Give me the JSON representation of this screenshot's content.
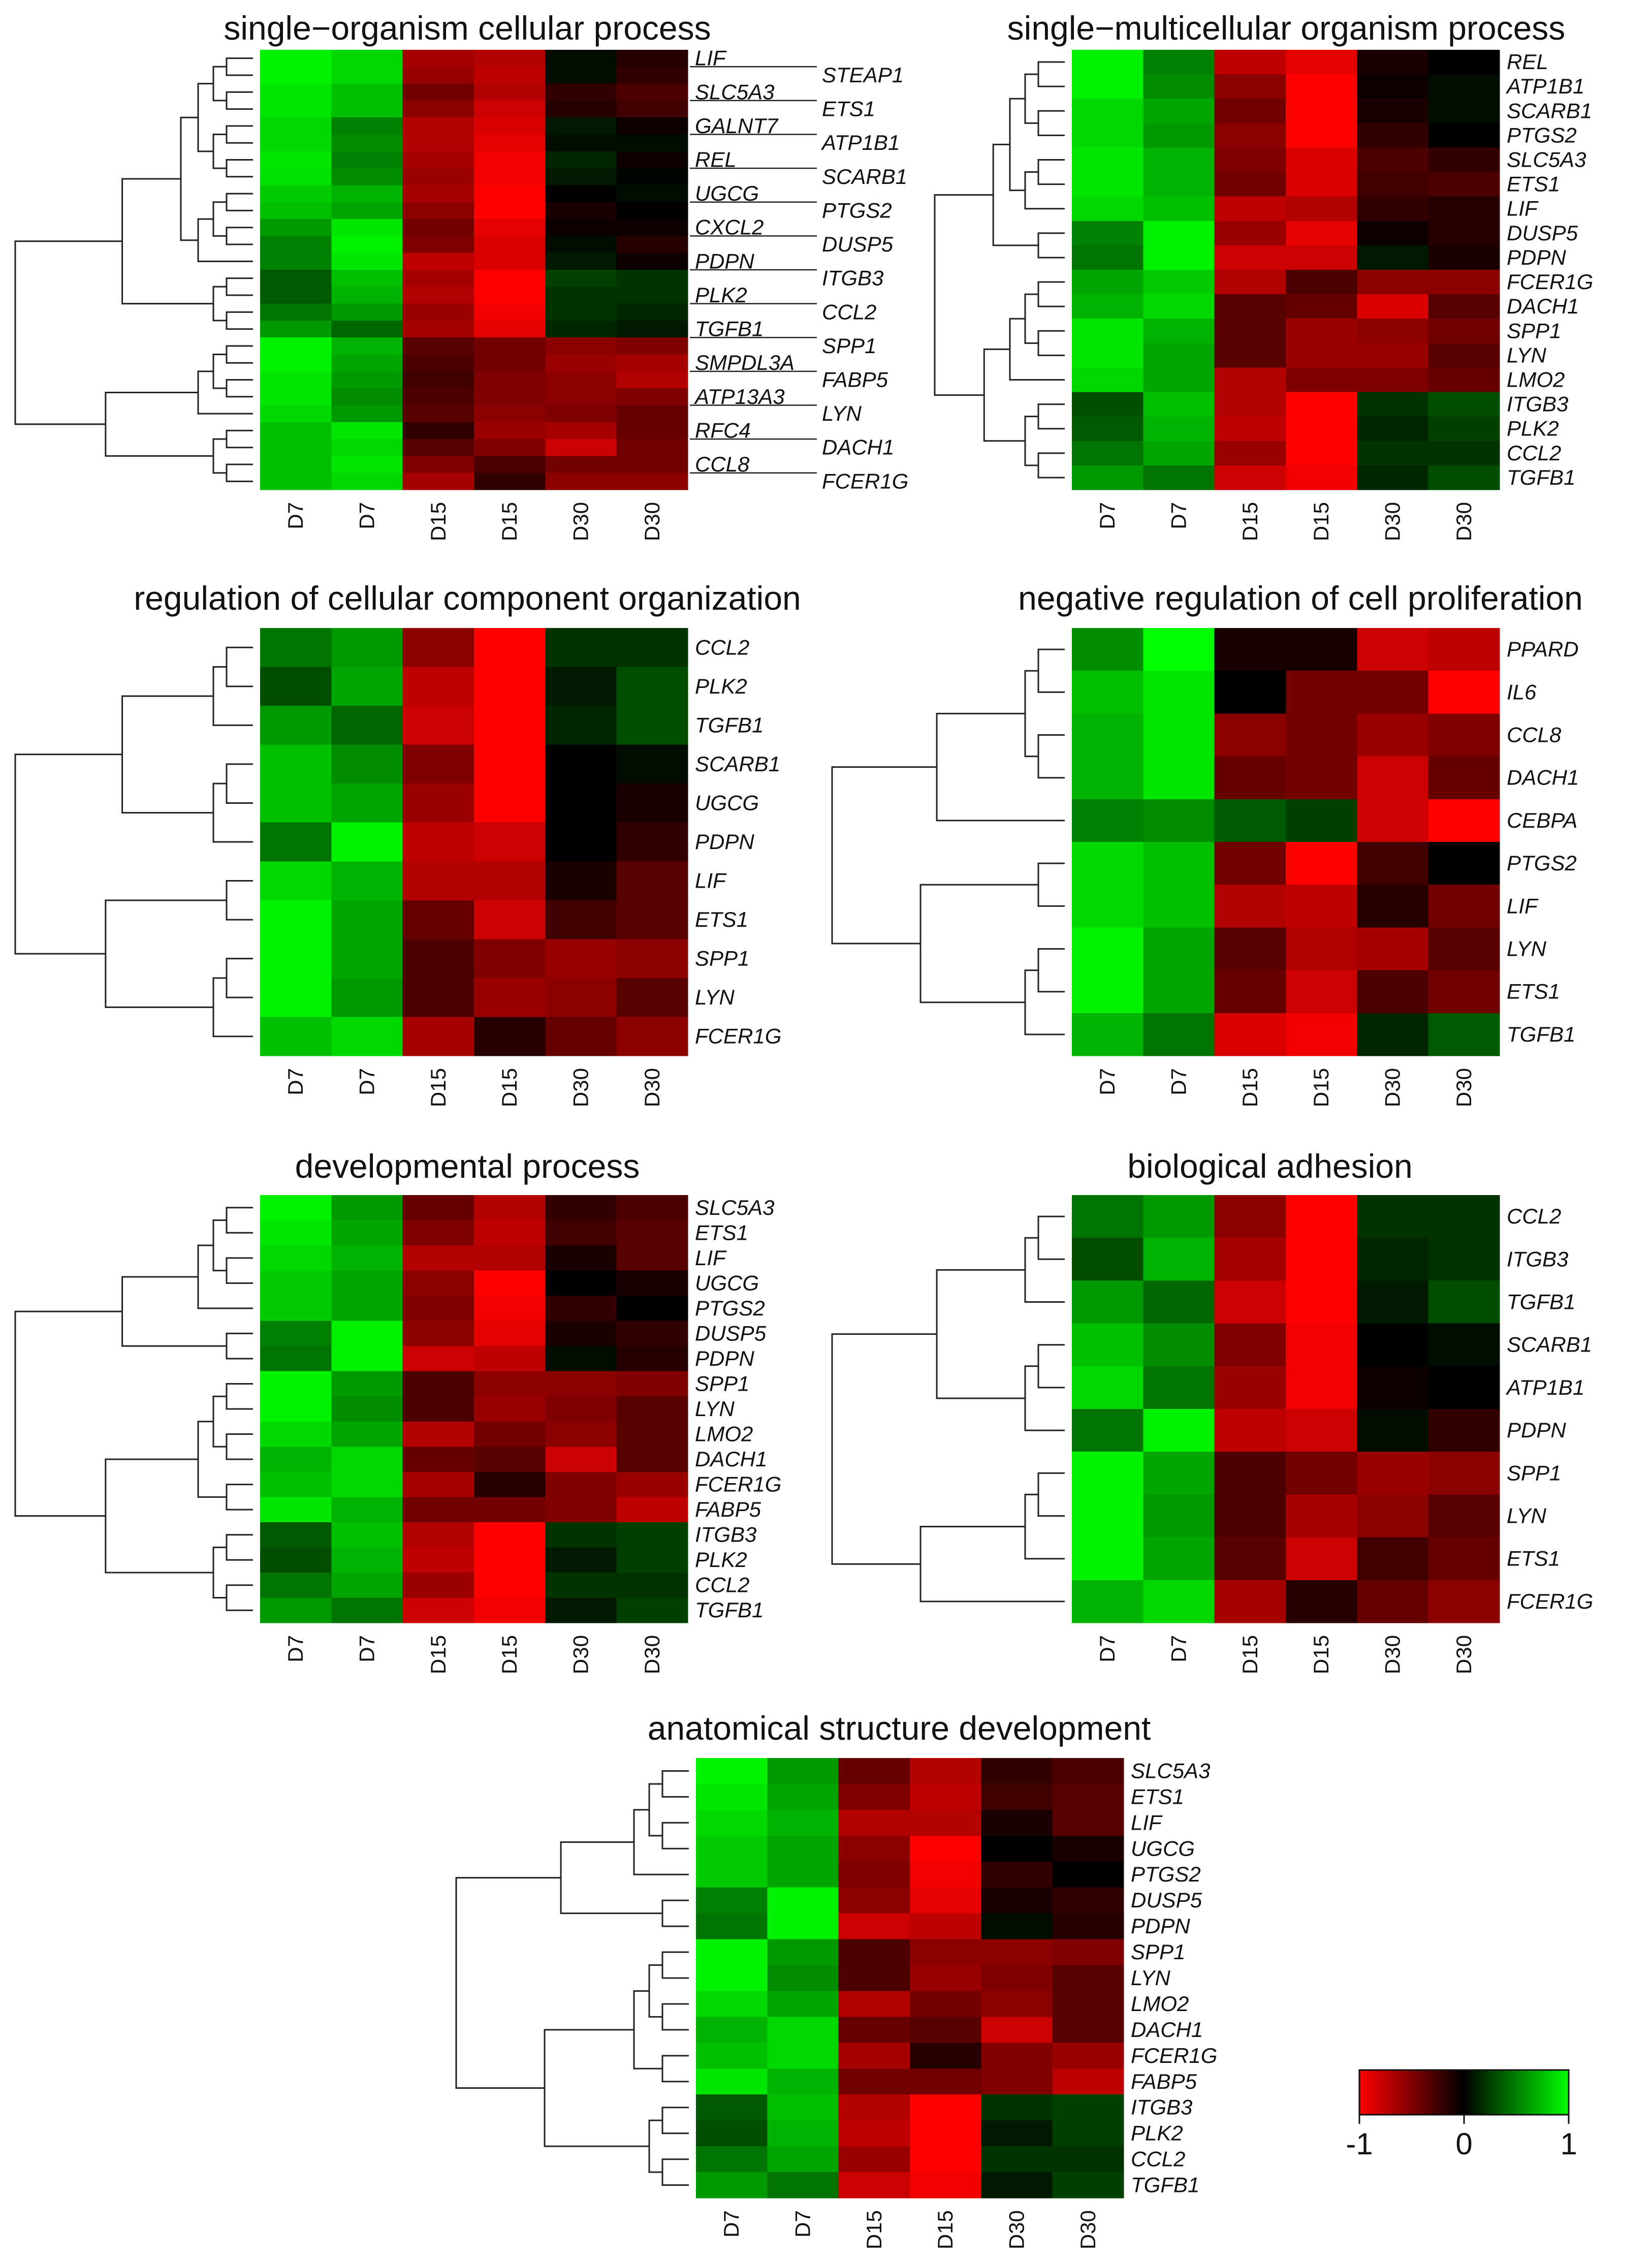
{
  "chart_data": [
    {
      "type": "heatmap",
      "title": "single−organism cellular process",
      "columns": [
        "D7",
        "D7",
        "D15",
        "D15",
        "D30",
        "D30"
      ],
      "rows": [
        "LIF",
        "STEAP1",
        "SLC5A3",
        "ETS1",
        "GALNT7",
        "ATP1B1",
        "REL",
        "SCARB1",
        "UGCG",
        "PTGS2",
        "CXCL2",
        "DUSP5",
        "PDPN",
        "ITGB3",
        "PLK2",
        "CCL2",
        "TGFB1",
        "SPP1",
        "SMPDL3A",
        "FABP5",
        "ATP13A3",
        "LYN",
        "RFC4",
        "DACH1",
        "CCL8",
        "FCER1G"
      ],
      "values": [
        [
          0.95,
          0.85,
          -0.65,
          -0.7,
          0.05,
          -0.15
        ],
        [
          0.95,
          0.85,
          -0.6,
          -0.75,
          0.05,
          -0.2
        ],
        [
          0.9,
          0.75,
          -0.45,
          -0.7,
          -0.2,
          -0.3
        ],
        [
          0.9,
          0.75,
          -0.55,
          -0.8,
          -0.15,
          -0.25
        ],
        [
          0.85,
          0.5,
          -0.7,
          -0.85,
          0.1,
          -0.05
        ],
        [
          0.85,
          0.55,
          -0.7,
          -0.9,
          0.05,
          0.05
        ],
        [
          0.9,
          0.5,
          -0.65,
          -0.95,
          0.15,
          -0.05
        ],
        [
          0.88,
          0.55,
          -0.6,
          -0.95,
          0.1,
          0.02
        ],
        [
          0.8,
          0.7,
          -0.65,
          -1,
          0.0,
          0.05
        ],
        [
          0.75,
          0.65,
          -0.55,
          -1,
          -0.1,
          0.0
        ],
        [
          0.6,
          0.9,
          -0.45,
          -0.9,
          -0.05,
          -0.05
        ],
        [
          0.5,
          0.95,
          -0.5,
          -0.85,
          0.05,
          -0.15
        ],
        [
          0.5,
          0.9,
          -0.75,
          -0.85,
          0.1,
          -0.05
        ],
        [
          0.35,
          0.75,
          -0.65,
          -1,
          0.25,
          0.2
        ],
        [
          0.35,
          0.7,
          -0.7,
          -1,
          0.2,
          0.2
        ],
        [
          0.45,
          0.6,
          -0.6,
          -0.95,
          0.2,
          0.15
        ],
        [
          0.6,
          0.4,
          -0.65,
          -0.9,
          0.15,
          0.1
        ],
        [
          0.95,
          0.7,
          -0.35,
          -0.45,
          -0.55,
          -0.5
        ],
        [
          0.95,
          0.65,
          -0.3,
          -0.45,
          -0.6,
          -0.65
        ],
        [
          0.9,
          0.6,
          -0.25,
          -0.5,
          -0.55,
          -0.7
        ],
        [
          0.9,
          0.55,
          -0.3,
          -0.5,
          -0.55,
          -0.5
        ],
        [
          0.85,
          0.6,
          -0.35,
          -0.55,
          -0.5,
          -0.4
        ],
        [
          0.75,
          0.9,
          -0.2,
          -0.6,
          -0.65,
          -0.4
        ],
        [
          0.75,
          0.85,
          -0.35,
          -0.5,
          -0.8,
          -0.45
        ],
        [
          0.75,
          0.9,
          -0.5,
          -0.3,
          -0.45,
          -0.45
        ],
        [
          0.75,
          0.85,
          -0.65,
          -0.2,
          -0.55,
          -0.55
        ]
      ],
      "scale": [
        -1,
        1
      ]
    },
    {
      "type": "heatmap",
      "title": "single−multicellular organism process",
      "columns": [
        "D7",
        "D7",
        "D15",
        "D15",
        "D30",
        "D30"
      ],
      "rows": [
        "REL",
        "ATP1B1",
        "SCARB1",
        "PTGS2",
        "SLC5A3",
        "ETS1",
        "LIF",
        "DUSP5",
        "PDPN",
        "FCER1G",
        "DACH1",
        "SPP1",
        "LYN",
        "LMO2",
        "ITGB3",
        "PLK2",
        "CCL2",
        "TGFB1"
      ],
      "values": [
        [
          0.95,
          0.5,
          -0.75,
          -0.9,
          -0.1,
          0.0
        ],
        [
          0.95,
          0.55,
          -0.55,
          -1,
          -0.05,
          0.05
        ],
        [
          0.85,
          0.65,
          -0.45,
          -1,
          -0.1,
          0.05
        ],
        [
          0.85,
          0.6,
          -0.55,
          -1,
          -0.2,
          0.0
        ],
        [
          0.9,
          0.7,
          -0.5,
          -0.85,
          -0.3,
          -0.2
        ],
        [
          0.9,
          0.7,
          -0.45,
          -0.85,
          -0.25,
          -0.3
        ],
        [
          0.85,
          0.75,
          -0.75,
          -0.7,
          -0.2,
          -0.15
        ],
        [
          0.5,
          0.95,
          -0.6,
          -0.9,
          -0.05,
          -0.15
        ],
        [
          0.45,
          0.95,
          -0.8,
          -0.8,
          0.1,
          -0.1
        ],
        [
          0.65,
          0.8,
          -0.7,
          -0.3,
          -0.55,
          -0.55
        ],
        [
          0.7,
          0.85,
          -0.35,
          -0.4,
          -0.85,
          -0.35
        ],
        [
          0.9,
          0.7,
          -0.35,
          -0.6,
          -0.55,
          -0.45
        ],
        [
          0.9,
          0.65,
          -0.35,
          -0.6,
          -0.6,
          -0.35
        ],
        [
          0.85,
          0.65,
          -0.7,
          -0.5,
          -0.5,
          -0.4
        ],
        [
          0.3,
          0.75,
          -0.7,
          -1,
          0.2,
          0.3
        ],
        [
          0.35,
          0.7,
          -0.75,
          -1,
          0.15,
          0.25
        ],
        [
          0.45,
          0.65,
          -0.6,
          -1,
          0.2,
          0.2
        ],
        [
          0.6,
          0.45,
          -0.8,
          -0.95,
          0.15,
          0.3
        ]
      ],
      "scale": [
        -1,
        1
      ]
    },
    {
      "type": "heatmap",
      "title": "regulation of cellular component organization",
      "columns": [
        "D7",
        "D7",
        "D15",
        "D15",
        "D30",
        "D30"
      ],
      "rows": [
        "CCL2",
        "PLK2",
        "TGFB1",
        "SCARB1",
        "UGCG",
        "PDPN",
        "LIF",
        "ETS1",
        "SPP1",
        "LYN",
        "FCER1G"
      ],
      "values": [
        [
          0.45,
          0.6,
          -0.55,
          -1,
          0.2,
          0.2
        ],
        [
          0.3,
          0.65,
          -0.75,
          -1,
          0.1,
          0.3
        ],
        [
          0.6,
          0.4,
          -0.8,
          -1,
          0.15,
          0.3
        ],
        [
          0.75,
          0.55,
          -0.5,
          -1,
          0.0,
          0.05
        ],
        [
          0.75,
          0.65,
          -0.6,
          -1,
          0.0,
          -0.1
        ],
        [
          0.45,
          0.95,
          -0.75,
          -0.8,
          0.0,
          -0.2
        ],
        [
          0.85,
          0.7,
          -0.7,
          -0.7,
          -0.1,
          -0.35
        ],
        [
          0.95,
          0.65,
          -0.4,
          -0.8,
          -0.25,
          -0.35
        ],
        [
          0.95,
          0.65,
          -0.3,
          -0.5,
          -0.6,
          -0.55
        ],
        [
          0.95,
          0.6,
          -0.3,
          -0.6,
          -0.55,
          -0.35
        ],
        [
          0.75,
          0.85,
          -0.65,
          -0.15,
          -0.4,
          -0.55
        ]
      ],
      "scale": [
        -1,
        1
      ]
    },
    {
      "type": "heatmap",
      "title": "negative regulation of cell proliferation",
      "columns": [
        "D7",
        "D7",
        "D15",
        "D15",
        "D30",
        "D30"
      ],
      "rows": [
        "PPARD",
        "IL6",
        "CCL8",
        "DACH1",
        "CEBPA",
        "PTGS2",
        "LIF",
        "LYN",
        "ETS1",
        "TGFB1"
      ],
      "values": [
        [
          0.55,
          1.0,
          -0.1,
          -0.1,
          -0.8,
          -0.75
        ],
        [
          0.75,
          0.9,
          0.0,
          -0.45,
          -0.45,
          -1
        ],
        [
          0.7,
          0.9,
          -0.55,
          -0.45,
          -0.6,
          -0.5
        ],
        [
          0.7,
          0.9,
          -0.4,
          -0.45,
          -0.8,
          -0.4
        ],
        [
          0.5,
          0.55,
          0.35,
          0.25,
          -0.8,
          -1
        ],
        [
          0.85,
          0.75,
          -0.45,
          -1,
          -0.25,
          0.0
        ],
        [
          0.85,
          0.75,
          -0.7,
          -0.75,
          -0.15,
          -0.45
        ],
        [
          0.95,
          0.65,
          -0.35,
          -0.7,
          -0.65,
          -0.35
        ],
        [
          0.95,
          0.65,
          -0.4,
          -0.8,
          -0.3,
          -0.45
        ],
        [
          0.7,
          0.45,
          -0.85,
          -0.95,
          0.15,
          0.35
        ]
      ],
      "scale": [
        -1,
        1
      ]
    },
    {
      "type": "heatmap",
      "title": "developmental process",
      "columns": [
        "D7",
        "D7",
        "D15",
        "D15",
        "D30",
        "D30"
      ],
      "rows": [
        "SLC5A3",
        "ETS1",
        "LIF",
        "UGCG",
        "PTGS2",
        "DUSP5",
        "PDPN",
        "SPP1",
        "LYN",
        "LMO2",
        "DACH1",
        "FCER1G",
        "FABP5",
        "ITGB3",
        "PLK2",
        "CCL2",
        "TGFB1"
      ],
      "values": [
        [
          0.95,
          0.6,
          -0.4,
          -0.7,
          -0.2,
          -0.3
        ],
        [
          0.9,
          0.65,
          -0.5,
          -0.75,
          -0.25,
          -0.35
        ],
        [
          0.85,
          0.7,
          -0.7,
          -0.7,
          -0.1,
          -0.35
        ],
        [
          0.8,
          0.65,
          -0.55,
          -1,
          0.0,
          -0.1
        ],
        [
          0.8,
          0.65,
          -0.5,
          -0.95,
          -0.2,
          0.0
        ],
        [
          0.5,
          0.95,
          -0.55,
          -0.9,
          -0.1,
          -0.2
        ],
        [
          0.45,
          0.95,
          -0.8,
          -0.75,
          0.05,
          -0.15
        ],
        [
          0.95,
          0.6,
          -0.3,
          -0.55,
          -0.55,
          -0.5
        ],
        [
          0.95,
          0.55,
          -0.3,
          -0.6,
          -0.5,
          -0.35
        ],
        [
          0.85,
          0.65,
          -0.7,
          -0.45,
          -0.55,
          -0.35
        ],
        [
          0.7,
          0.85,
          -0.4,
          -0.35,
          -0.8,
          -0.35
        ],
        [
          0.75,
          0.85,
          -0.65,
          -0.15,
          -0.5,
          -0.6
        ],
        [
          0.9,
          0.7,
          -0.45,
          -0.45,
          -0.5,
          -0.75
        ],
        [
          0.35,
          0.75,
          -0.7,
          -1,
          0.2,
          0.25
        ],
        [
          0.3,
          0.7,
          -0.75,
          -1,
          0.1,
          0.25
        ],
        [
          0.45,
          0.65,
          -0.6,
          -1,
          0.2,
          0.2
        ],
        [
          0.6,
          0.45,
          -0.8,
          -0.95,
          0.1,
          0.25
        ]
      ],
      "scale": [
        -1,
        1
      ]
    },
    {
      "type": "heatmap",
      "title": "biological adhesion",
      "columns": [
        "D7",
        "D7",
        "D15",
        "D15",
        "D30",
        "D30"
      ],
      "rows": [
        "CCL2",
        "ITGB3",
        "TGFB1",
        "SCARB1",
        "ATP1B1",
        "PDPN",
        "SPP1",
        "LYN",
        "ETS1",
        "FCER1G"
      ],
      "values": [
        [
          0.45,
          0.6,
          -0.55,
          -1,
          0.2,
          0.2
        ],
        [
          0.3,
          0.7,
          -0.65,
          -1,
          0.15,
          0.2
        ],
        [
          0.6,
          0.4,
          -0.8,
          -1,
          0.1,
          0.3
        ],
        [
          0.75,
          0.55,
          -0.5,
          -0.95,
          0.0,
          0.05
        ],
        [
          0.85,
          0.45,
          -0.6,
          -0.95,
          -0.05,
          0.0
        ],
        [
          0.45,
          0.95,
          -0.75,
          -0.8,
          0.05,
          -0.2
        ],
        [
          0.95,
          0.65,
          -0.3,
          -0.45,
          -0.6,
          -0.55
        ],
        [
          0.95,
          0.6,
          -0.3,
          -0.65,
          -0.55,
          -0.35
        ],
        [
          0.95,
          0.65,
          -0.35,
          -0.8,
          -0.25,
          -0.4
        ],
        [
          0.7,
          0.85,
          -0.65,
          -0.15,
          -0.4,
          -0.55
        ]
      ],
      "scale": [
        -1,
        1
      ]
    },
    {
      "type": "heatmap",
      "title": "anatomical structure development",
      "columns": [
        "D7",
        "D7",
        "D15",
        "D15",
        "D30",
        "D30"
      ],
      "rows": [
        "SLC5A3",
        "ETS1",
        "LIF",
        "UGCG",
        "PTGS2",
        "DUSP5",
        "PDPN",
        "SPP1",
        "LYN",
        "LMO2",
        "DACH1",
        "FCER1G",
        "FABP5",
        "ITGB3",
        "PLK2",
        "CCL2",
        "TGFB1"
      ],
      "values": [
        [
          0.95,
          0.6,
          -0.4,
          -0.7,
          -0.2,
          -0.3
        ],
        [
          0.9,
          0.65,
          -0.5,
          -0.75,
          -0.25,
          -0.35
        ],
        [
          0.85,
          0.7,
          -0.7,
          -0.7,
          -0.1,
          -0.35
        ],
        [
          0.8,
          0.65,
          -0.55,
          -1,
          0.0,
          -0.1
        ],
        [
          0.8,
          0.65,
          -0.5,
          -0.95,
          -0.2,
          0.0
        ],
        [
          0.5,
          0.95,
          -0.55,
          -0.9,
          -0.1,
          -0.2
        ],
        [
          0.45,
          0.95,
          -0.8,
          -0.75,
          0.05,
          -0.15
        ],
        [
          0.95,
          0.6,
          -0.3,
          -0.55,
          -0.55,
          -0.5
        ],
        [
          0.95,
          0.55,
          -0.3,
          -0.6,
          -0.5,
          -0.35
        ],
        [
          0.85,
          0.65,
          -0.7,
          -0.45,
          -0.55,
          -0.35
        ],
        [
          0.7,
          0.85,
          -0.4,
          -0.35,
          -0.8,
          -0.35
        ],
        [
          0.75,
          0.85,
          -0.65,
          -0.15,
          -0.5,
          -0.6
        ],
        [
          0.9,
          0.7,
          -0.45,
          -0.45,
          -0.5,
          -0.75
        ],
        [
          0.35,
          0.75,
          -0.7,
          -1,
          0.2,
          0.25
        ],
        [
          0.3,
          0.7,
          -0.75,
          -1,
          0.1,
          0.25
        ],
        [
          0.45,
          0.65,
          -0.6,
          -1,
          0.2,
          0.2
        ],
        [
          0.6,
          0.45,
          -0.8,
          -0.95,
          0.1,
          0.25
        ]
      ],
      "scale": [
        -1,
        1
      ]
    }
  ],
  "legend": {
    "ticks": [
      "-1",
      "0",
      "1"
    ],
    "colors": {
      "low": "#ff0000",
      "mid": "#000000",
      "high": "#00ff00"
    }
  }
}
